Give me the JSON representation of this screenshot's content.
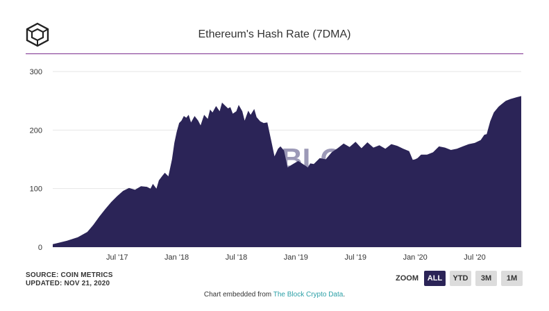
{
  "header": {
    "logo": "the-block-cube-logo",
    "title": "Ethereum's Hash Rate (7DMA)"
  },
  "chart_data": {
    "type": "area",
    "title": "Ethereum's Hash Rate (7DMA)",
    "xlabel": "",
    "ylabel": "",
    "ylim": [
      0,
      300
    ],
    "grid": true,
    "fill_color": "#2b2457",
    "y_ticks": [
      "0",
      "100",
      "200",
      "300"
    ],
    "y_tick_values": [
      0,
      100,
      200,
      300
    ],
    "x_ticks": [
      "Jul '17",
      "Jan '18",
      "Jul '18",
      "Jan '19",
      "Jul '19",
      "Jan '20",
      "Jul '20"
    ],
    "x_tick_values": [
      2017.5,
      2018.0,
      2018.5,
      2019.0,
      2019.5,
      2020.0,
      2020.5
    ],
    "xlim": [
      2016.96,
      2020.89
    ],
    "series": [
      {
        "name": "Hash Rate (7DMA)",
        "x": [
          2016.96,
          2017.0,
          2017.08,
          2017.17,
          2017.25,
          2017.3,
          2017.35,
          2017.4,
          2017.45,
          2017.5,
          2017.55,
          2017.6,
          2017.65,
          2017.7,
          2017.75,
          2017.78,
          2017.8,
          2017.83,
          2017.85,
          2017.88,
          2017.9,
          2017.93,
          2017.96,
          2017.98,
          2018.0,
          2018.02,
          2018.04,
          2018.06,
          2018.08,
          2018.1,
          2018.12,
          2018.15,
          2018.18,
          2018.2,
          2018.23,
          2018.26,
          2018.28,
          2018.3,
          2018.33,
          2018.36,
          2018.38,
          2018.4,
          2018.43,
          2018.45,
          2018.47,
          2018.5,
          2018.52,
          2018.55,
          2018.57,
          2018.6,
          2018.62,
          2018.65,
          2018.67,
          2018.7,
          2018.73,
          2018.76,
          2018.8,
          2018.82,
          2018.85,
          2018.87,
          2018.9,
          2018.93,
          2018.96,
          2019.0,
          2019.02,
          2019.05,
          2019.08,
          2019.1,
          2019.12,
          2019.15,
          2019.2,
          2019.25,
          2019.3,
          2019.35,
          2019.4,
          2019.45,
          2019.5,
          2019.55,
          2019.6,
          2019.65,
          2019.7,
          2019.75,
          2019.8,
          2019.85,
          2019.9,
          2019.95,
          2019.98,
          2020.0,
          2020.02,
          2020.05,
          2020.1,
          2020.15,
          2020.2,
          2020.25,
          2020.3,
          2020.35,
          2020.4,
          2020.45,
          2020.5,
          2020.55,
          2020.58,
          2020.6,
          2020.63,
          2020.66,
          2020.7,
          2020.73,
          2020.76,
          2020.8,
          2020.85,
          2020.89
        ],
        "values": [
          5,
          7,
          11,
          17,
          26,
          38,
          52,
          65,
          77,
          87,
          96,
          101,
          98,
          104,
          103,
          100,
          108,
          100,
          114,
          122,
          127,
          121,
          150,
          178,
          197,
          212,
          216,
          224,
          221,
          226,
          213,
          224,
          216,
          208,
          226,
          219,
          235,
          230,
          241,
          232,
          247,
          243,
          237,
          239,
          228,
          232,
          243,
          232,
          216,
          233,
          226,
          236,
          222,
          215,
          212,
          213,
          175,
          155,
          168,
          172,
          165,
          136,
          140,
          145,
          147,
          143,
          139,
          136,
          143,
          142,
          152,
          150,
          162,
          169,
          177,
          171,
          180,
          169,
          179,
          170,
          174,
          168,
          176,
          173,
          168,
          164,
          149,
          150,
          152,
          158,
          158,
          162,
          172,
          170,
          166,
          168,
          172,
          176,
          178,
          183,
          192,
          193,
          215,
          230,
          240,
          245,
          250,
          253,
          256,
          258
        ]
      }
    ],
    "watermark": "BLOCK"
  },
  "footer": {
    "source_line": "SOURCE: COIN METRICS",
    "updated_line": "UPDATED: NOV 21, 2020",
    "embed_prefix": "Chart embedded from ",
    "embed_link": "The Block Crypto Data",
    "embed_suffix": "."
  },
  "zoom": {
    "label": "ZOOM",
    "buttons": [
      {
        "label": "ALL",
        "active": true
      },
      {
        "label": "YTD",
        "active": false
      },
      {
        "label": "3M",
        "active": false
      },
      {
        "label": "1M",
        "active": false
      }
    ]
  }
}
